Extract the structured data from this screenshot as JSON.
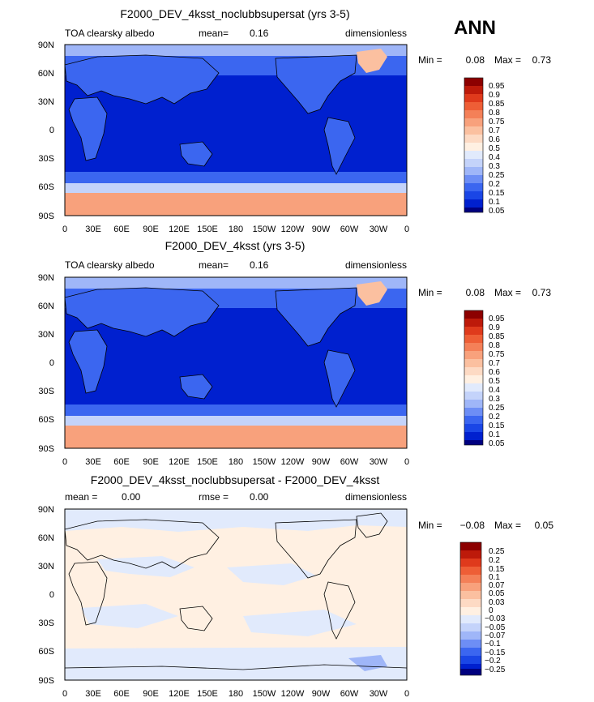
{
  "season_label": "ANN",
  "colors": {
    "scale_main": [
      "#00007f",
      "#0020cf",
      "#1a46e6",
      "#3b66f0",
      "#6d8ef5",
      "#9fb6f8",
      "#c4d3fa",
      "#e1eafc",
      "#fff0e2",
      "#fddac4",
      "#fbc0a0",
      "#f8a17c",
      "#f48058",
      "#ee5e36",
      "#df3a1c",
      "#bd1a0a",
      "#8c0000"
    ],
    "scale_diff": [
      "#00007f",
      "#0020cf",
      "#1a46e6",
      "#3b66f0",
      "#6d8ef5",
      "#9fb6f8",
      "#c4d3fa",
      "#e1eafc",
      "#fff0e2",
      "#fddac4",
      "#fbc0a0",
      "#f8a17c",
      "#f48058",
      "#ee5e36",
      "#df3a1c",
      "#bd1a0a",
      "#8c0000"
    ]
  },
  "chart_data": [
    {
      "type": "heatmap",
      "title": "F2000_DEV_4ksst_noclubbsupersat (yrs 3-5)",
      "left_label": "TOA clearsky albedo",
      "mean_label": "mean=",
      "mean_value": "0.16",
      "units": "dimensionless",
      "min_label": "Min =",
      "min_value": "0.08",
      "max_label": "Max =",
      "max_value": "0.73",
      "xticks": [
        "0",
        "30E",
        "60E",
        "90E",
        "120E",
        "150E",
        "180",
        "150W",
        "120W",
        "90W",
        "60W",
        "30W",
        "0"
      ],
      "yticks": [
        "90N",
        "60N",
        "30N",
        "0",
        "30S",
        "60S",
        "90S"
      ],
      "levels": [
        "0.95",
        "0.9",
        "0.85",
        "0.8",
        "0.75",
        "0.7",
        "0.6",
        "0.5",
        "0.4",
        "0.3",
        "0.25",
        "0.2",
        "0.15",
        "0.1",
        "0.05"
      ],
      "xlim": [
        0,
        360
      ],
      "ylim": [
        -90,
        90
      ]
    },
    {
      "type": "heatmap",
      "title": "F2000_DEV_4ksst (yrs 3-5)",
      "left_label": "TOA clearsky albedo",
      "mean_label": "mean=",
      "mean_value": "0.16",
      "units": "dimensionless",
      "min_label": "Min =",
      "min_value": "0.08",
      "max_label": "Max =",
      "max_value": "0.73",
      "xticks": [
        "0",
        "30E",
        "60E",
        "90E",
        "120E",
        "150E",
        "180",
        "150W",
        "120W",
        "90W",
        "60W",
        "30W",
        "0"
      ],
      "yticks": [
        "90N",
        "60N",
        "30N",
        "0",
        "30S",
        "60S",
        "90S"
      ],
      "levels": [
        "0.95",
        "0.9",
        "0.85",
        "0.8",
        "0.75",
        "0.7",
        "0.6",
        "0.5",
        "0.4",
        "0.3",
        "0.25",
        "0.2",
        "0.15",
        "0.1",
        "0.05"
      ],
      "xlim": [
        0,
        360
      ],
      "ylim": [
        -90,
        90
      ]
    },
    {
      "type": "heatmap",
      "title": "F2000_DEV_4ksst_noclubbsupersat - F2000_DEV_4ksst",
      "left_label": "mean =",
      "left_value": "0.00",
      "mean_label": "rmse =",
      "mean_value": "0.00",
      "units": "dimensionless",
      "min_label": "Min =",
      "min_value": "−0.08",
      "max_label": "Max =",
      "max_value": "0.05",
      "xticks": [
        "0",
        "30E",
        "60E",
        "90E",
        "120E",
        "150E",
        "180",
        "150W",
        "120W",
        "90W",
        "60W",
        "30W",
        "0"
      ],
      "yticks": [
        "90N",
        "60N",
        "30N",
        "0",
        "30S",
        "60S",
        "90S"
      ],
      "levels": [
        "0.25",
        "0.2",
        "0.15",
        "0.1",
        "0.07",
        "0.05",
        "0.03",
        "0",
        "−0.03",
        "−0.05",
        "−0.07",
        "−0.1",
        "−0.15",
        "−0.2",
        "−0.25"
      ],
      "xlim": [
        0,
        360
      ],
      "ylim": [
        -90,
        90
      ]
    }
  ]
}
